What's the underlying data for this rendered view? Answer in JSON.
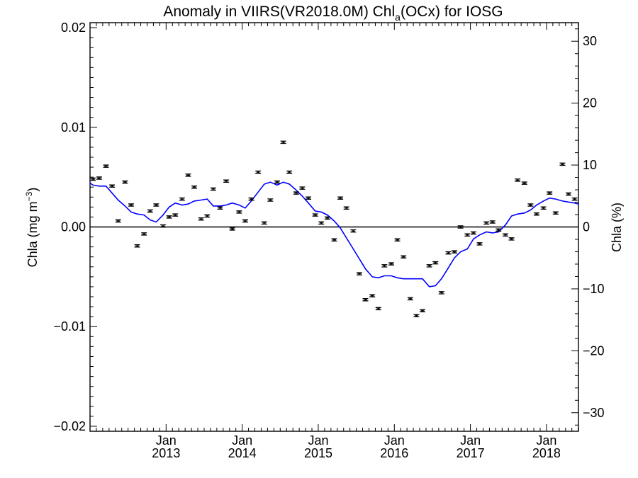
{
  "chart_data": {
    "type": "line",
    "title": "Anomaly in VIIRS(VR2018.0M) Chl",
    "title_subscript": "a",
    "title_suffix": "(OCx) for IOSG",
    "ylabel_left": "Chla (mg m",
    "ylabel_left_exp": "−3",
    "ylabel_left_close": ")",
    "ylabel_right": "Chla (%)",
    "xlim": [
      2012.0,
      2018.42
    ],
    "ylim": [
      -0.0205,
      0.0205
    ],
    "ylim_right": [
      -33.0,
      33.0
    ],
    "grid": false,
    "zero_line": true,
    "y_ticks": [
      {
        "value": 0.02,
        "label": "0.02"
      },
      {
        "value": 0.01,
        "label": "0.01"
      },
      {
        "value": 0.0,
        "label": "0.00"
      },
      {
        "value": -0.01,
        "label": "−0.01"
      },
      {
        "value": -0.02,
        "label": "−0.02"
      }
    ],
    "y_ticks_right": [
      {
        "value": 30,
        "label": "30"
      },
      {
        "value": 20,
        "label": "20"
      },
      {
        "value": 10,
        "label": "10"
      },
      {
        "value": 0,
        "label": "0"
      },
      {
        "value": -10,
        "label": "−10"
      },
      {
        "value": -20,
        "label": "−20"
      },
      {
        "value": -30,
        "label": "−30"
      }
    ],
    "x_ticks": [
      {
        "value": 2013.0,
        "month": "Jan",
        "year": "2013"
      },
      {
        "value": 2014.0,
        "month": "Jan",
        "year": "2014"
      },
      {
        "value": 2015.0,
        "month": "Jan",
        "year": "2015"
      },
      {
        "value": 2016.0,
        "month": "Jan",
        "year": "2016"
      },
      {
        "value": 2017.0,
        "month": "Jan",
        "year": "2017"
      },
      {
        "value": 2018.0,
        "month": "Jan",
        "year": "2018"
      }
    ],
    "series": [
      {
        "kind": "monthly-anomaly-points",
        "color": "#000000",
        "x": [
          2012.04,
          2012.12,
          2012.21,
          2012.29,
          2012.37,
          2012.46,
          2012.54,
          2012.62,
          2012.71,
          2012.79,
          2012.87,
          2012.96,
          2013.04,
          2013.12,
          2013.21,
          2013.29,
          2013.37,
          2013.46,
          2013.54,
          2013.62,
          2013.71,
          2013.79,
          2013.87,
          2013.96,
          2014.04,
          2014.12,
          2014.21,
          2014.29,
          2014.37,
          2014.46,
          2014.54,
          2014.62,
          2014.71,
          2014.79,
          2014.87,
          2014.96,
          2015.04,
          2015.12,
          2015.21,
          2015.29,
          2015.37,
          2015.46,
          2015.54,
          2015.62,
          2015.71,
          2015.79,
          2015.87,
          2015.96,
          2016.04,
          2016.12,
          2016.21,
          2016.29,
          2016.37,
          2016.46,
          2016.54,
          2016.62,
          2016.71,
          2016.79,
          2016.87,
          2016.96,
          2017.04,
          2017.12,
          2017.21,
          2017.29,
          2017.37,
          2017.46,
          2017.54,
          2017.62,
          2017.71,
          2017.79,
          2017.87,
          2017.96,
          2018.04,
          2018.12,
          2018.21,
          2018.29,
          2018.37
        ],
        "values": [
          0.0048,
          0.0049,
          0.0061,
          0.0041,
          0.0006,
          0.0045,
          0.0022,
          -0.0019,
          -0.0007,
          0.0016,
          0.0022,
          0.0001,
          0.001,
          0.0012,
          0.0028,
          0.0052,
          0.004,
          0.0008,
          0.0011,
          0.0038,
          0.0019,
          0.0046,
          -0.0002,
          0.0015,
          0.0006,
          0.0028,
          0.0055,
          0.0004,
          0.0027,
          0.0045,
          0.0085,
          0.0055,
          0.0034,
          0.0039,
          0.0029,
          0.0012,
          0.0004,
          0.0009,
          -0.0013,
          0.0029,
          0.0019,
          -0.0004,
          -0.0047,
          -0.0073,
          -0.0069,
          -0.0082,
          -0.0039,
          -0.0037,
          -0.0013,
          -0.003,
          -0.0072,
          -0.0089,
          -0.0084,
          -0.0039,
          -0.0036,
          -0.0066,
          -0.0026,
          -0.0025,
          0.0,
          -0.0008,
          -0.0006,
          -0.0017,
          0.0004,
          0.0005,
          -0.0003,
          -0.0008,
          -0.0012,
          0.0047,
          0.0044,
          0.0022,
          0.0013,
          0.0019,
          0.0034,
          0.0014,
          0.0063,
          0.0033,
          0.0028
        ]
      },
      {
        "kind": "running-mean",
        "color": "#0000ff",
        "x": [
          2012.0,
          2012.04,
          2012.12,
          2012.21,
          2012.29,
          2012.37,
          2012.46,
          2012.54,
          2012.62,
          2012.71,
          2012.79,
          2012.87,
          2012.96,
          2013.04,
          2013.12,
          2013.21,
          2013.29,
          2013.37,
          2013.46,
          2013.54,
          2013.62,
          2013.71,
          2013.79,
          2013.87,
          2013.96,
          2014.04,
          2014.12,
          2014.21,
          2014.29,
          2014.37,
          2014.46,
          2014.54,
          2014.62,
          2014.71,
          2014.79,
          2014.87,
          2014.96,
          2015.04,
          2015.12,
          2015.21,
          2015.29,
          2015.37,
          2015.46,
          2015.54,
          2015.62,
          2015.71,
          2015.79,
          2015.87,
          2015.96,
          2016.04,
          2016.12,
          2016.21,
          2016.29,
          2016.37,
          2016.46,
          2016.54,
          2016.62,
          2016.71,
          2016.79,
          2016.87,
          2016.96,
          2017.04,
          2017.12,
          2017.21,
          2017.29,
          2017.37,
          2017.46,
          2017.54,
          2017.62,
          2017.71,
          2017.79,
          2017.87,
          2017.96,
          2018.04,
          2018.12,
          2018.21,
          2018.29,
          2018.37,
          2018.42
        ],
        "values": [
          0.0044,
          0.0042,
          0.0041,
          0.0041,
          0.0034,
          0.0027,
          0.0021,
          0.0015,
          0.0013,
          0.0012,
          0.0007,
          0.0005,
          0.0012,
          0.002,
          0.0024,
          0.0022,
          0.0023,
          0.0026,
          0.0027,
          0.0028,
          0.0021,
          0.0021,
          0.0022,
          0.0024,
          0.0022,
          0.0019,
          0.0026,
          0.0035,
          0.0043,
          0.0045,
          0.0042,
          0.0045,
          0.0043,
          0.0037,
          0.0031,
          0.0024,
          0.0016,
          0.0015,
          0.0012,
          0.0006,
          -0.0001,
          -0.0011,
          -0.0022,
          -0.0032,
          -0.0042,
          -0.005,
          -0.0051,
          -0.0049,
          -0.0049,
          -0.0051,
          -0.0052,
          -0.0052,
          -0.0052,
          -0.0052,
          -0.006,
          -0.0059,
          -0.0052,
          -0.0041,
          -0.0031,
          -0.0025,
          -0.0022,
          -0.0012,
          -0.0008,
          -0.0005,
          -0.0006,
          -0.0005,
          0.0002,
          0.0011,
          0.0013,
          0.0014,
          0.0017,
          0.0022,
          0.0026,
          0.0029,
          0.0028,
          0.0026,
          0.0025,
          0.0024,
          0.0023
        ]
      }
    ]
  }
}
